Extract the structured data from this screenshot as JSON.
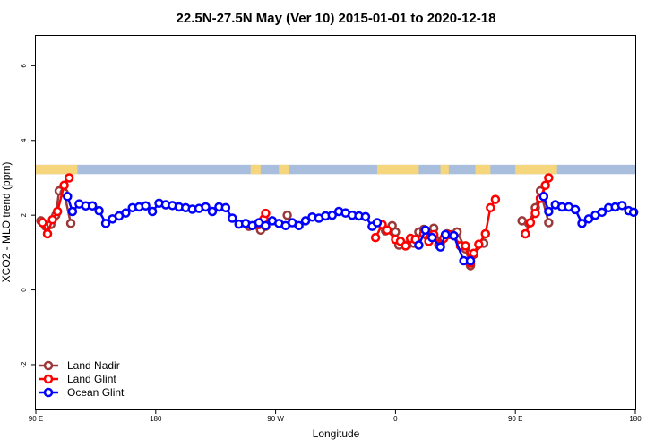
{
  "chart_data": {
    "type": "line",
    "title": "22.5N-27.5N May (Ver 10)   2015-01-01 to 2020-12-18",
    "xlabel": "Longitude",
    "ylabel": "XCO2 - MLO trend (ppm)",
    "xlim": [
      0,
      360
    ],
    "ylim": [
      -3.2,
      6.8
    ],
    "x_ticks": [
      {
        "x": 0,
        "label": "90 E"
      },
      {
        "x": 72,
        "label": "180"
      },
      {
        "x": 144,
        "label": "90 W"
      },
      {
        "x": 216,
        "label": "0"
      },
      {
        "x": 288,
        "label": "90 E"
      },
      {
        "x": 360,
        "label": "180"
      }
    ],
    "y_ticks": [
      -2,
      0,
      2,
      4,
      6
    ],
    "y_tick_labels": [
      "-2",
      "0",
      "2",
      "4",
      "6"
    ],
    "map_strip": {
      "y_range": [
        3.1,
        3.35
      ],
      "ocean_color": "#a8bedc",
      "land_color": "#f6d67d",
      "land_segments": [
        [
          0,
          25
        ],
        [
          129,
          135
        ],
        [
          146,
          152
        ],
        [
          205,
          230
        ],
        [
          243,
          248
        ],
        [
          264,
          273
        ],
        [
          288,
          313
        ]
      ]
    },
    "legend_position": "bottom-left",
    "series": [
      {
        "name": "Land Nadir",
        "color": "#9b3838",
        "segments": [
          [
            [
              3,
              1.85
            ],
            [
              6,
              1.7
            ],
            [
              9,
              1.75
            ],
            [
              12,
              2.0
            ],
            [
              14,
              2.65
            ],
            [
              17,
              2.6
            ],
            [
              21,
              1.78
            ]
          ],
          [
            [
              128,
              1.7
            ],
            [
              135,
              1.6
            ],
            [
              138,
              1.7
            ]
          ],
          [
            [
              151,
              2.0
            ]
          ],
          [
            [
              210,
              1.58
            ],
            [
              214,
              1.72
            ],
            [
              216,
              1.55
            ],
            [
              218,
              1.2
            ],
            [
              223,
              1.2
            ],
            [
              227,
              1.25
            ],
            [
              230,
              1.55
            ],
            [
              233,
              1.62
            ],
            [
              235,
              1.45
            ],
            [
              239,
              1.65
            ],
            [
              243,
              1.25
            ],
            [
              247,
              1.5
            ],
            [
              250,
              1.48
            ],
            [
              253,
              1.55
            ],
            [
              258,
              1.1
            ],
            [
              261,
              0.65
            ],
            [
              263,
              0.95
            ],
            [
              269,
              1.25
            ]
          ],
          [
            [
              292,
              1.85
            ],
            [
              296,
              1.78
            ],
            [
              300,
              2.2
            ],
            [
              303,
              2.65
            ],
            [
              308,
              1.8
            ]
          ]
        ]
      },
      {
        "name": "Land Glint",
        "color": "#ff0000",
        "segments": [
          [
            [
              4,
              1.8
            ],
            [
              7,
              1.5
            ],
            [
              10,
              1.88
            ],
            [
              13,
              2.1
            ],
            [
              17,
              2.8
            ],
            [
              20,
              3.0
            ]
          ],
          [
            [
              134,
              1.75
            ],
            [
              137,
              1.9
            ],
            [
              138,
              2.05
            ]
          ],
          [
            [
              204,
              1.4
            ],
            [
              208,
              1.75
            ],
            [
              211,
              1.6
            ],
            [
              216,
              1.35
            ],
            [
              219,
              1.3
            ],
            [
              222,
              1.18
            ],
            [
              225,
              1.38
            ],
            [
              228,
              1.35
            ],
            [
              233,
              1.5
            ],
            [
              236,
              1.3
            ],
            [
              239,
              1.48
            ],
            [
              242,
              1.2
            ],
            [
              245,
              1.38
            ],
            [
              248,
              1.48
            ],
            [
              251,
              1.45
            ],
            [
              255,
              1.18
            ],
            [
              258,
              1.18
            ],
            [
              261,
              0.72
            ],
            [
              263,
              0.98
            ],
            [
              266,
              1.22
            ],
            [
              270,
              1.5
            ],
            [
              273,
              2.2
            ],
            [
              276,
              2.42
            ]
          ],
          [
            [
              294,
              1.5
            ],
            [
              297,
              1.8
            ],
            [
              300,
              2.05
            ],
            [
              303,
              2.45
            ],
            [
              306,
              2.8
            ],
            [
              308,
              3.0
            ]
          ]
        ]
      },
      {
        "name": "Ocean Glint",
        "color": "#0000ff",
        "segments": [
          [
            [
              19,
              2.5
            ],
            [
              22,
              2.1
            ],
            [
              26,
              2.3
            ],
            [
              30,
              2.25
            ],
            [
              34,
              2.25
            ],
            [
              38,
              2.12
            ],
            [
              42,
              1.78
            ],
            [
              46,
              1.9
            ],
            [
              50,
              1.98
            ],
            [
              54,
              2.06
            ],
            [
              58,
              2.2
            ],
            [
              62,
              2.22
            ],
            [
              66,
              2.25
            ],
            [
              70,
              2.1
            ],
            [
              74,
              2.32
            ],
            [
              78,
              2.28
            ],
            [
              82,
              2.26
            ],
            [
              86,
              2.22
            ],
            [
              90,
              2.2
            ],
            [
              94,
              2.16
            ],
            [
              98,
              2.18
            ],
            [
              102,
              2.22
            ],
            [
              106,
              2.1
            ],
            [
              110,
              2.22
            ],
            [
              114,
              2.2
            ],
            [
              118,
              1.92
            ],
            [
              122,
              1.76
            ],
            [
              126,
              1.78
            ],
            [
              130,
              1.72
            ],
            [
              134,
              1.8
            ],
            [
              138,
              1.72
            ],
            [
              142,
              1.85
            ],
            [
              146,
              1.78
            ],
            [
              150,
              1.72
            ],
            [
              154,
              1.8
            ],
            [
              158,
              1.72
            ],
            [
              162,
              1.85
            ],
            [
              166,
              1.95
            ],
            [
              170,
              1.92
            ],
            [
              174,
              1.98
            ],
            [
              178,
              2.0
            ],
            [
              182,
              2.1
            ],
            [
              186,
              2.06
            ],
            [
              190,
              2.0
            ],
            [
              194,
              1.98
            ],
            [
              198,
              1.96
            ],
            [
              202,
              1.7
            ],
            [
              205,
              1.8
            ]
          ],
          [
            [
              230,
              1.2
            ],
            [
              234,
              1.6
            ],
            [
              238,
              1.4
            ],
            [
              243,
              1.15
            ],
            [
              246,
              1.48
            ],
            [
              251,
              1.45
            ],
            [
              257,
              0.78
            ],
            [
              261,
              0.78
            ]
          ],
          [
            [
              305,
              2.5
            ],
            [
              308,
              2.1
            ],
            [
              312,
              2.28
            ],
            [
              316,
              2.22
            ],
            [
              320,
              2.22
            ],
            [
              324,
              2.15
            ],
            [
              328,
              1.78
            ],
            [
              332,
              1.9
            ],
            [
              336,
              2.0
            ],
            [
              340,
              2.08
            ],
            [
              344,
              2.2
            ],
            [
              348,
              2.22
            ],
            [
              352,
              2.26
            ],
            [
              356,
              2.12
            ],
            [
              359,
              2.08
            ]
          ]
        ]
      }
    ]
  }
}
